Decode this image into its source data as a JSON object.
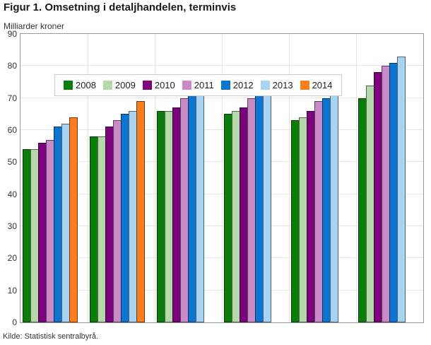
{
  "chart_data": {
    "type": "bar",
    "title": "Figur 1. Omsetning i detaljhandelen, terminvis",
    "ylabel": "Milliarder kroner",
    "source": "Kilde: Statistisk sentralbyrå.",
    "ylim": [
      0,
      90
    ],
    "yticks": [
      0,
      10,
      20,
      30,
      40,
      50,
      60,
      70,
      80,
      90
    ],
    "group_count": 6,
    "x_axis_labels_visible": false,
    "grid": true,
    "legend_position": "top-left-inside",
    "colors": {
      "grid": "#e4e4e4",
      "plot_border": "#999999",
      "text": "#333333"
    },
    "series": [
      {
        "name": "2008",
        "color": "#0a7d0a",
        "values": [
          54,
          58,
          66,
          65,
          63,
          70
        ]
      },
      {
        "name": "2009",
        "color": "#b5d9a8",
        "values": [
          54,
          58,
          66,
          66,
          64,
          74
        ]
      },
      {
        "name": "2010",
        "color": "#7b037b",
        "values": [
          56,
          61,
          67,
          67,
          66,
          78
        ]
      },
      {
        "name": "2011",
        "color": "#c88bc8",
        "values": [
          57,
          63,
          70,
          70,
          69,
          80
        ]
      },
      {
        "name": "2012",
        "color": "#0d75d0",
        "values": [
          61,
          65,
          74,
          72,
          70,
          81
        ]
      },
      {
        "name": "2013",
        "color": "#a9d4f1",
        "values": [
          62,
          66,
          75,
          75,
          71,
          83
        ]
      },
      {
        "name": "2014",
        "color": "#fa7d1e",
        "values": [
          64,
          69,
          null,
          null,
          null,
          null
        ]
      }
    ]
  }
}
